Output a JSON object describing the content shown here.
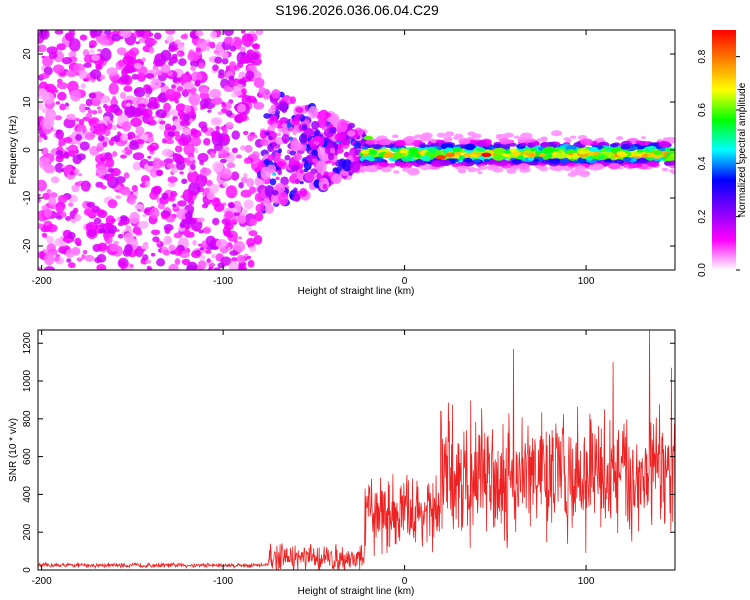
{
  "figure": {
    "title": "S196.2026.036.06.04.C29"
  },
  "chart_data": [
    {
      "type": "heatmap",
      "name": "spectrogram",
      "xlabel": "Height of straight line (km)",
      "ylabel": "Frequency (Hz)",
      "xlim": [
        -202,
        149
      ],
      "ylim": [
        -25,
        25
      ],
      "xticks": [
        -200,
        -100,
        0,
        100
      ],
      "yticks": [
        -20,
        -10,
        0,
        10,
        20
      ],
      "colorbar": {
        "label": "Normalized spectral amplitude",
        "range": [
          0,
          0.9
        ],
        "ticks": [
          0.0,
          0.2,
          0.4,
          0.6,
          0.8
        ],
        "colors": [
          "#ffffff",
          "#ff00ff",
          "#8000ff",
          "#0000ff",
          "#00ffff",
          "#00ff00",
          "#ffff00",
          "#ff8000",
          "#ff0000"
        ]
      },
      "description_regions": [
        {
          "x_range": [
            -202,
            -80
          ],
          "freq_range": [
            -25,
            25
          ],
          "level": "scattered noise 0.05-0.15"
        },
        {
          "x_range": [
            -80,
            -22
          ],
          "freq_range": [
            -12,
            12
          ],
          "level": "patchy 0.1-0.4"
        },
        {
          "x_range": [
            -22,
            149
          ],
          "freq_center": 0,
          "level": "narrow band 0.3-0.9"
        }
      ],
      "peak_points": [
        {
          "x": -20,
          "freq": 2.5,
          "amp": 0.6
        },
        {
          "x": 20,
          "freq": -1.5,
          "amp": 0.85
        },
        {
          "x": 25,
          "freq": -1,
          "amp": 0.8
        },
        {
          "x": 45,
          "freq": -1,
          "amp": 0.9
        },
        {
          "x": 70,
          "freq": -1,
          "amp": 0.75
        },
        {
          "x": 120,
          "freq": -1,
          "amp": 0.7
        }
      ]
    },
    {
      "type": "line",
      "name": "snr",
      "xlabel": "Height of straight line (km)",
      "ylabel": "SNR (10 * v/v)",
      "xlim": [
        -202,
        149
      ],
      "ylim": [
        0,
        1270
      ],
      "xticks": [
        -200,
        -100,
        0,
        100
      ],
      "yticks": [
        0,
        200,
        400,
        600,
        800,
        1000,
        1200
      ],
      "color": "#ee2222",
      "segments": [
        {
          "x": [
            -202,
            -75
          ],
          "mean": 25,
          "amp": 15
        },
        {
          "x": [
            -75,
            -22
          ],
          "mean": 60,
          "amp": 90
        },
        {
          "x": [
            -22,
            20
          ],
          "mean": 300,
          "amp": 250
        },
        {
          "x": [
            20,
            149
          ],
          "mean": 500,
          "amp": 420
        }
      ],
      "peaks": [
        {
          "x": 20,
          "y": 840
        },
        {
          "x": 60,
          "y": 1170
        },
        {
          "x": 115,
          "y": 1100
        },
        {
          "x": 135,
          "y": 1270
        },
        {
          "x": 147,
          "y": 1070
        }
      ]
    }
  ]
}
